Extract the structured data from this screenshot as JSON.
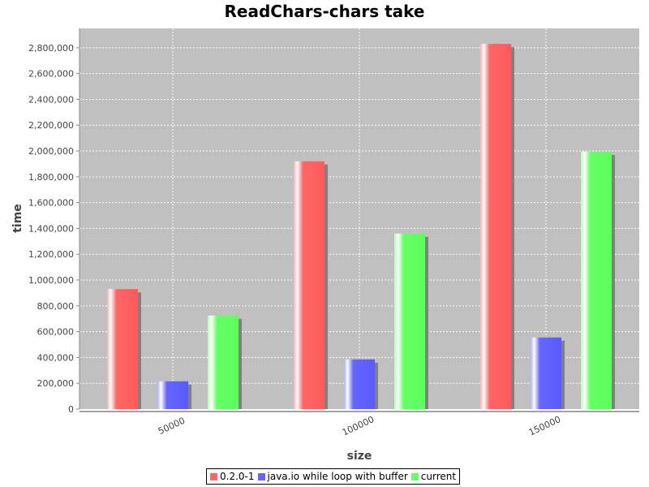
{
  "chart_data": {
    "type": "bar",
    "title": "ReadChars-chars take",
    "xlabel": "size",
    "ylabel": "time",
    "categories": [
      "50000",
      "100000",
      "150000"
    ],
    "series": [
      {
        "name": "0.2.0-1",
        "color": "#ff6666",
        "values": [
          930000,
          1920000,
          2830000
        ]
      },
      {
        "name": "java.io while loop with buffer",
        "color": "#6666ff",
        "values": [
          215000,
          385000,
          555000
        ]
      },
      {
        "name": "current",
        "color": "#66ff66",
        "values": [
          725000,
          1360000,
          1995000
        ]
      }
    ],
    "ylim": [
      0,
      2950000
    ],
    "yticks": [
      "0",
      "200,000",
      "400,000",
      "600,000",
      "800,000",
      "1,000,000",
      "1,200,000",
      "1,400,000",
      "1,600,000",
      "1,800,000",
      "2,000,000",
      "2,200,000",
      "2,400,000",
      "2,600,000",
      "2,800,000"
    ],
    "grid": true,
    "legend_position": "bottom",
    "plot_background": "#c0c0c0"
  }
}
